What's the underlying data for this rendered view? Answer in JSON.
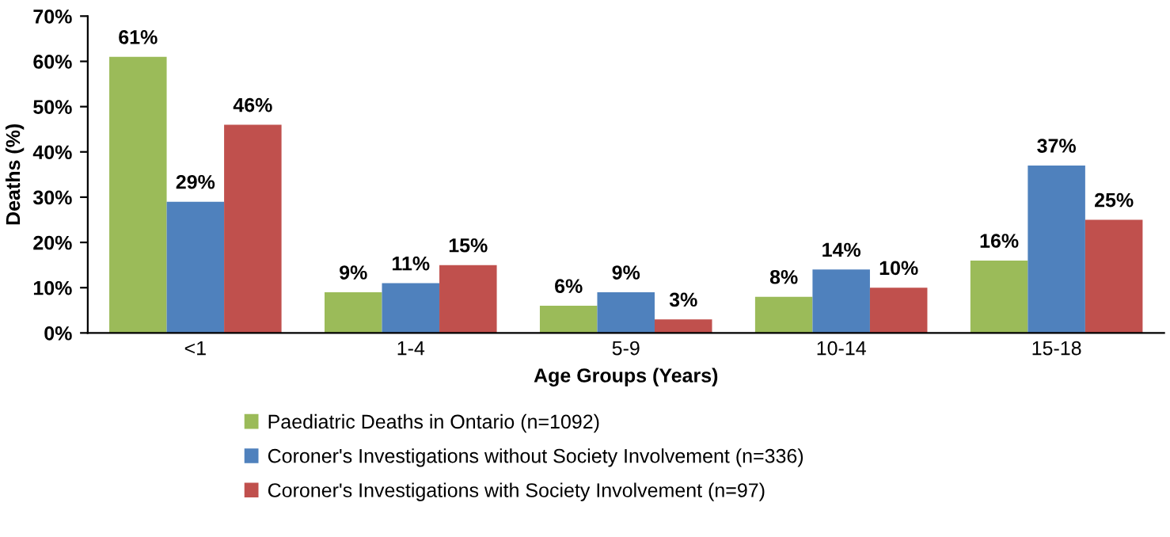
{
  "chart_data": {
    "type": "bar",
    "xlabel": "Age Groups (Years)",
    "ylabel": "Deaths (%)",
    "categories": [
      "<1",
      "1-4",
      "5-9",
      "10-14",
      "15-18"
    ],
    "series": [
      {
        "name": "Paediatric Deaths in Ontario (n=1092)",
        "color": "#9bbb59",
        "values": [
          61,
          9,
          6,
          8,
          16
        ],
        "value_labels": [
          "61%",
          "9%",
          "6%",
          "8%",
          "16%"
        ]
      },
      {
        "name": "Coroner's Investigations without Society Involvement (n=336)",
        "color": "#4f81bd",
        "values": [
          29,
          11,
          9,
          14,
          37
        ],
        "value_labels": [
          "29%",
          "11%",
          "9%",
          "14%",
          "37%"
        ]
      },
      {
        "name": "Coroner's Investigations with Society Involvement (n=97)",
        "color": "#c0504d",
        "values": [
          46,
          15,
          3,
          10,
          25
        ],
        "value_labels": [
          "46%",
          "15%",
          "3%",
          "10%",
          "25%"
        ]
      }
    ],
    "ylim": [
      0,
      70
    ],
    "yticks": [
      {
        "value": 0,
        "label": "0%"
      },
      {
        "value": 10,
        "label": "10%"
      },
      {
        "value": 20,
        "label": "20%"
      },
      {
        "value": 30,
        "label": "30%"
      },
      {
        "value": 40,
        "label": "40%"
      },
      {
        "value": 50,
        "label": "50%"
      },
      {
        "value": 60,
        "label": "60%"
      },
      {
        "value": 70,
        "label": "70%"
      }
    ],
    "grid": false,
    "legend": "bottom"
  }
}
